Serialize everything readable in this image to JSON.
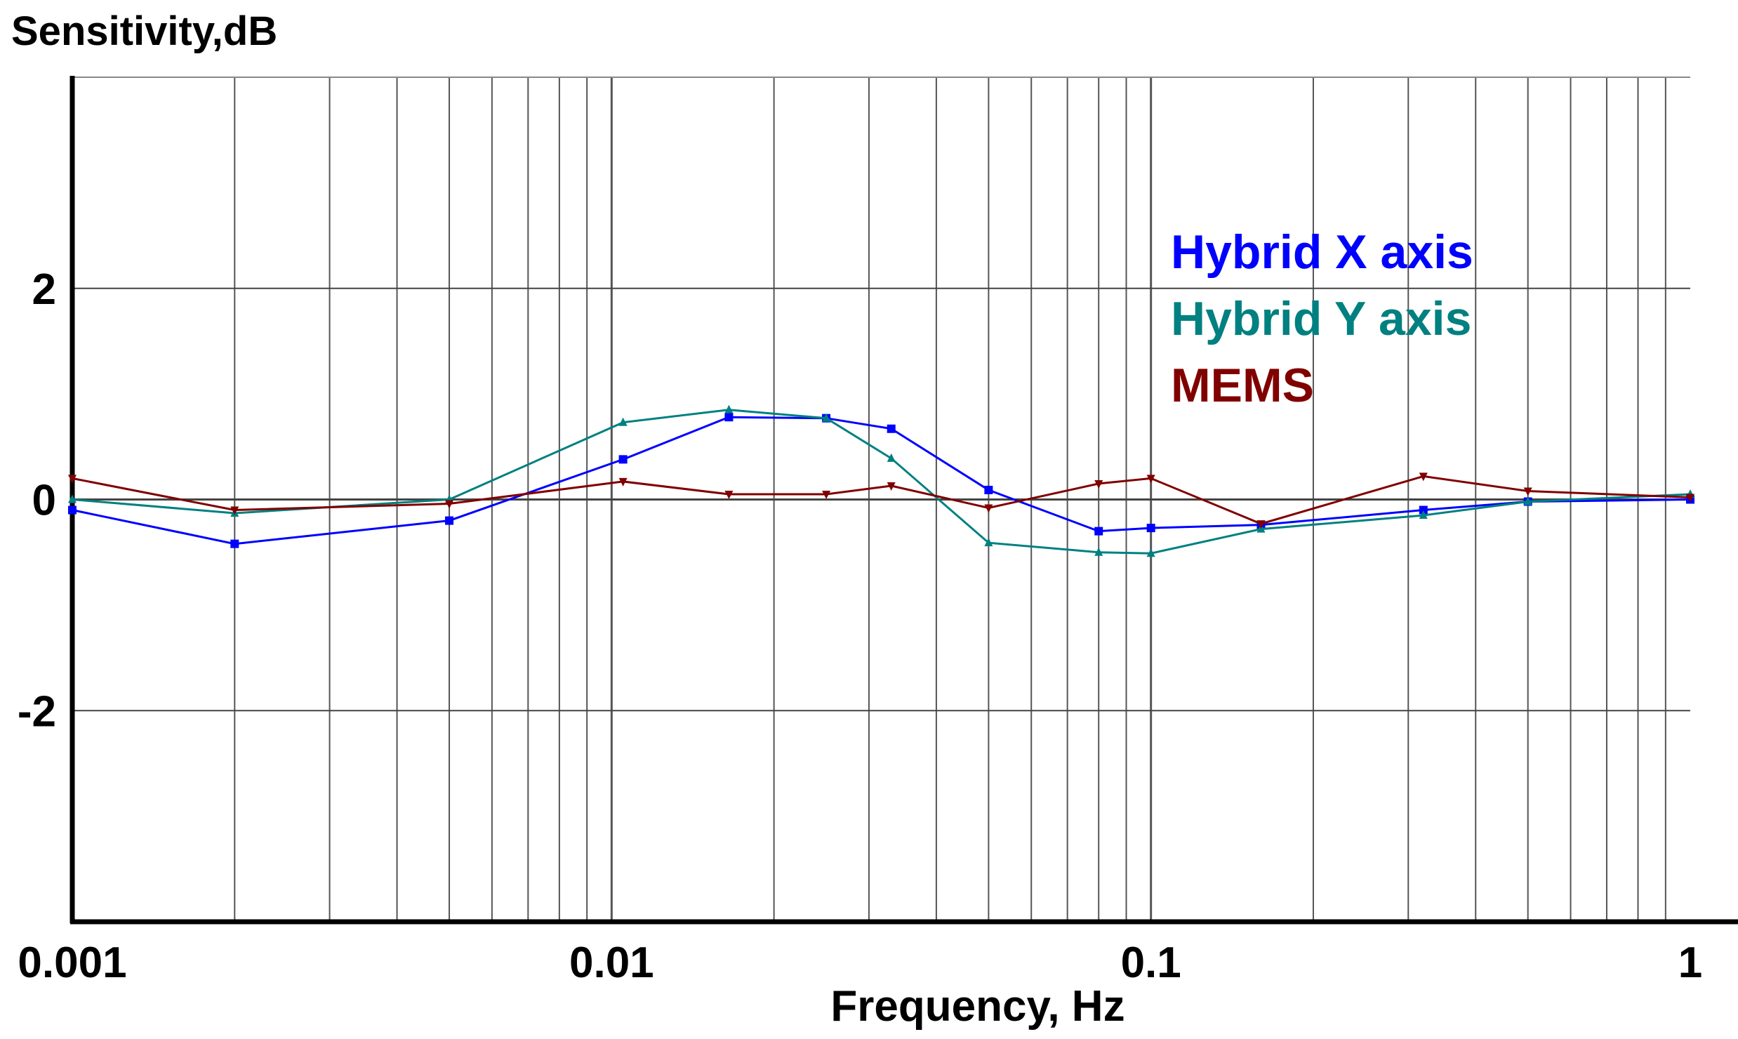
{
  "chart_data": {
    "type": "line",
    "ylabel": "Sensitivity,dB",
    "xlabel": "Frequency, Hz",
    "xscale": "log",
    "xlim": [
      0.001,
      1
    ],
    "ylim": [
      -4,
      4
    ],
    "x_ticks": [
      {
        "value": 0.001,
        "label": "0.001"
      },
      {
        "value": 0.01,
        "label": "0.01"
      },
      {
        "value": 0.1,
        "label": "0.1"
      },
      {
        "value": 1,
        "label": "1"
      }
    ],
    "y_ticks": [
      {
        "value": 2,
        "label": "2"
      },
      {
        "value": 0,
        "label": "0"
      },
      {
        "value": -2,
        "label": "-2"
      }
    ],
    "grid": true,
    "legend_position": "top-right",
    "series": [
      {
        "name": "Hybrid X axis",
        "color": "#0000ff",
        "marker": "square",
        "x": [
          0.001,
          0.002,
          0.005,
          0.0105,
          0.0165,
          0.025,
          0.033,
          0.05,
          0.08,
          0.1,
          0.16,
          0.32,
          0.5,
          1.0
        ],
        "y": [
          -0.1,
          -0.42,
          -0.2,
          0.38,
          0.78,
          0.77,
          0.67,
          0.09,
          -0.3,
          -0.27,
          -0.24,
          -0.1,
          -0.02,
          0.0
        ]
      },
      {
        "name": "Hybrid Y axis",
        "color": "#008080",
        "marker": "triangle-up",
        "x": [
          0.001,
          0.002,
          0.005,
          0.0105,
          0.0165,
          0.025,
          0.033,
          0.05,
          0.08,
          0.1,
          0.16,
          0.32,
          0.5,
          1.0
        ],
        "y": [
          0.0,
          -0.13,
          0.0,
          0.73,
          0.85,
          0.77,
          0.39,
          -0.41,
          -0.5,
          -0.51,
          -0.28,
          -0.15,
          -0.02,
          0.05
        ]
      },
      {
        "name": "MEMS",
        "color": "#800000",
        "marker": "triangle-down",
        "x": [
          0.001,
          0.002,
          0.005,
          0.0105,
          0.0165,
          0.025,
          0.033,
          0.05,
          0.08,
          0.1,
          0.16,
          0.32,
          0.5,
          1.0
        ],
        "y": [
          0.2,
          -0.1,
          -0.04,
          0.17,
          0.05,
          0.05,
          0.13,
          -0.08,
          0.15,
          0.2,
          -0.23,
          0.22,
          0.08,
          0.02
        ]
      }
    ]
  }
}
